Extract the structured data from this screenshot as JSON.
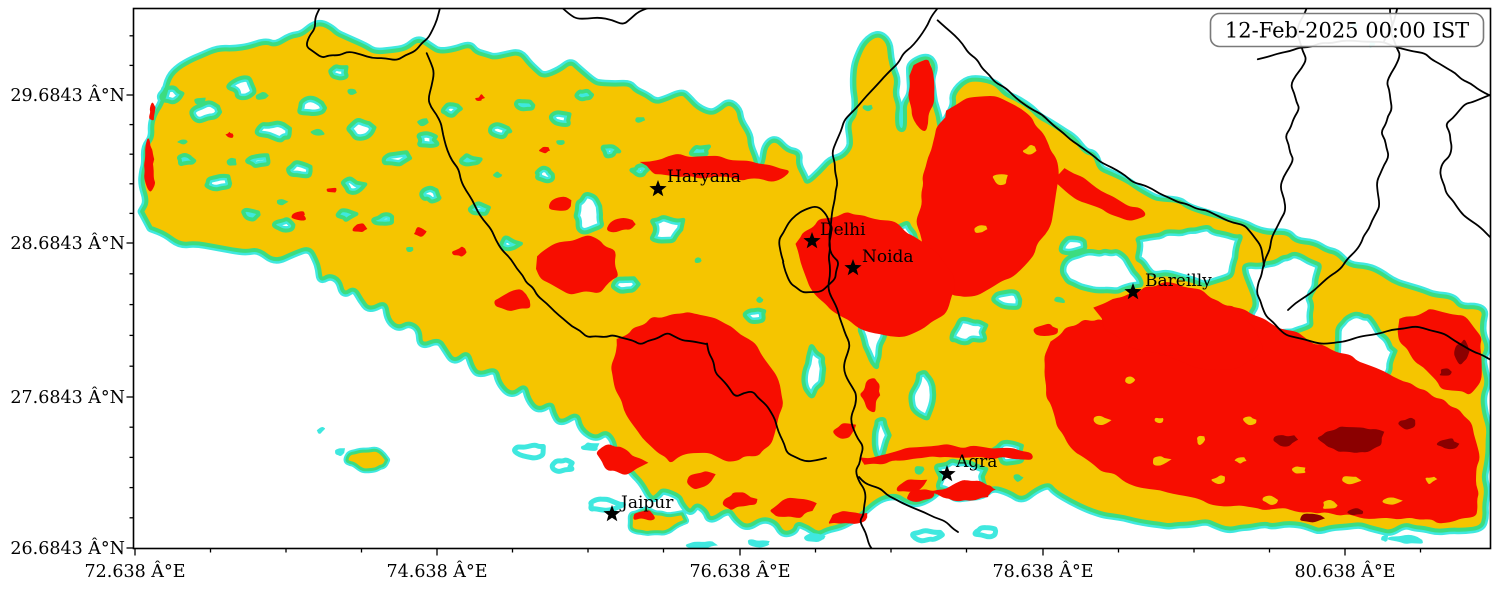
{
  "timestamp_box": {
    "label": "12-Feb-2025 00:00 IST"
  },
  "axes": {
    "x_ticks": [
      "72.638 Â°E",
      "74.638 Â°E",
      "76.638 Â°E",
      "78.638 Â°E",
      "80.638 Â°E"
    ],
    "y_ticks": [
      "29.6843 Â°N",
      "28.6843 Â°N",
      "27.6843 Â°N",
      "26.6843 Â°N"
    ]
  },
  "map": {
    "cities": [
      {
        "label": "Haryana"
      },
      {
        "label": "Delhi"
      },
      {
        "label": "Noida"
      },
      {
        "label": "Bareilly"
      },
      {
        "label": "Agra"
      },
      {
        "label": "Jaipur"
      }
    ],
    "palette": {
      "fog_shallow_cyan": "#3fe8df",
      "fog_light_green": "#3cdc80",
      "fog_moderate_yellow": "#f5c500",
      "fog_dense_red": "#f70d00",
      "fog_very_dense_darkred": "#8b0000",
      "boundary_black": "#000000",
      "background": "#ffffff",
      "stamp_border_gray": "#7a7a7a"
    }
  }
}
